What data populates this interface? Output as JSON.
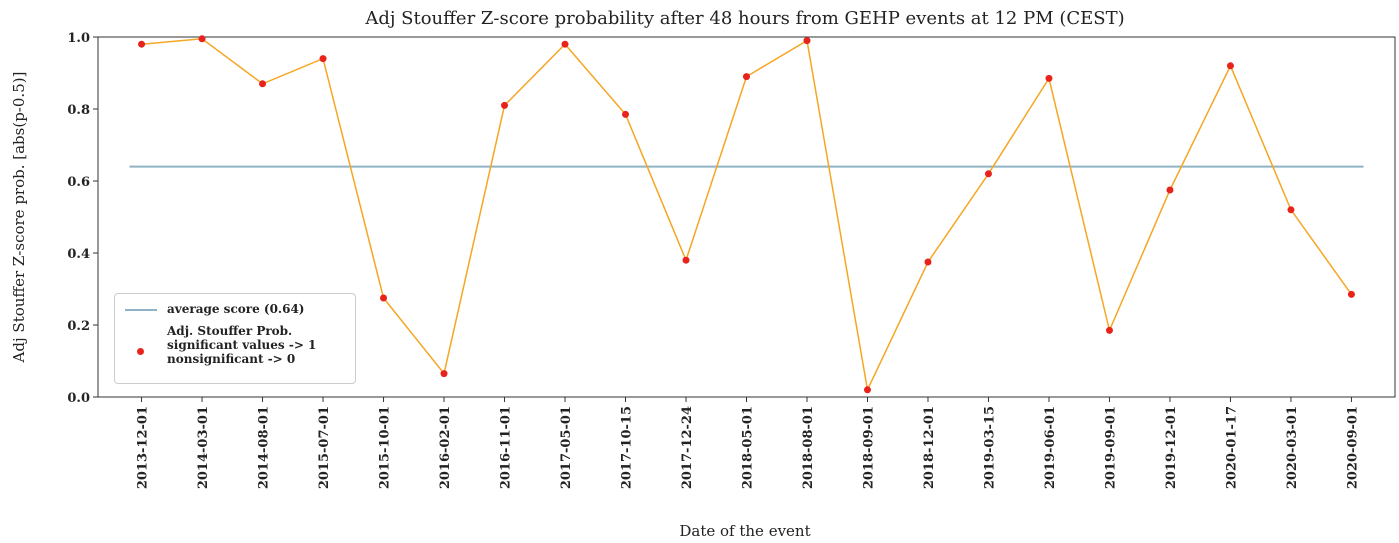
{
  "chart_data": {
    "type": "line",
    "title": "Adj Stouffer Z-score probability after 48 hours from GEHP events at 12 PM (CEST)",
    "x_label": "Date of the event",
    "y_label": "Adj Stouffer Z-score prob. [abs(p-0.5)]",
    "categories": [
      "2013-12-01",
      "2014-03-01",
      "2014-08-01",
      "2015-07-01",
      "2015-10-01",
      "2016-02-01",
      "2016-11-01",
      "2017-05-01",
      "2017-10-15",
      "2017-12-24",
      "2018-05-01",
      "2018-08-01",
      "2018-09-01",
      "2018-12-01",
      "2019-03-15",
      "2019-06-01",
      "2019-09-01",
      "2019-12-01",
      "2020-01-17",
      "2020-03-01",
      "2020-09-01"
    ],
    "series": [
      {
        "name": "Adj. Stouffer Prob.\nsignificant values -> 1\nnonsignificant -> 0",
        "color": "#f5a623",
        "marker_color": "#e8231c",
        "values": [
          0.98,
          0.995,
          0.87,
          0.94,
          0.275,
          0.065,
          0.81,
          0.98,
          0.785,
          0.38,
          0.89,
          0.99,
          0.02,
          0.375,
          0.62,
          0.885,
          0.185,
          0.575,
          0.92,
          0.52,
          0.285
        ]
      }
    ],
    "reference_line": {
      "name": "average score (0.64)",
      "value": 0.64,
      "color": "#8fb3c4"
    },
    "ylim": [
      0,
      1
    ],
    "yticks": [
      {
        "value": 0,
        "label": "0.0"
      },
      0.2,
      0.4,
      0.6,
      0.8,
      {
        "value": 1,
        "label": "1.0"
      }
    ],
    "legend": "lower left"
  }
}
